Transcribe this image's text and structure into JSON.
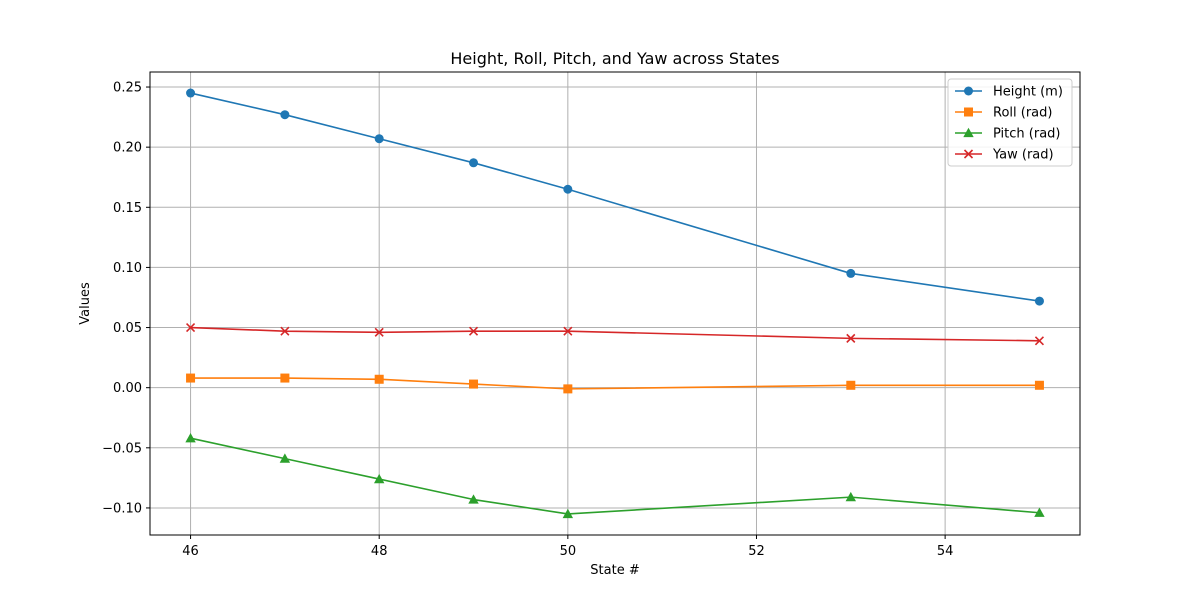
{
  "chart_data": {
    "type": "line",
    "title": "Height, Roll, Pitch, and Yaw across States",
    "xlabel": "State #",
    "ylabel": "Values",
    "x": [
      46,
      47,
      48,
      49,
      50,
      53,
      55
    ],
    "xlim": [
      45.57,
      55.43
    ],
    "ylim": [
      -0.1225,
      0.2625
    ],
    "xticks": [
      46,
      48,
      50,
      52,
      54
    ],
    "xtick_labels": [
      "46",
      "48",
      "50",
      "52",
      "54"
    ],
    "yticks": [
      -0.1,
      -0.05,
      0.0,
      0.05,
      0.1,
      0.15,
      0.2,
      0.25
    ],
    "ytick_labels": [
      "−0.10",
      "−0.05",
      "0.00",
      "0.05",
      "0.10",
      "0.15",
      "0.20",
      "0.25"
    ],
    "grid": true,
    "legend_position": "top-right",
    "series": [
      {
        "name": "Height (m)",
        "color": "#1f77b4",
        "marker": "circle",
        "values": [
          0.245,
          0.227,
          0.207,
          0.187,
          0.165,
          0.095,
          0.072
        ]
      },
      {
        "name": "Roll (rad)",
        "color": "#ff7f0e",
        "marker": "square",
        "values": [
          0.008,
          0.008,
          0.007,
          0.003,
          -0.001,
          0.002,
          0.002
        ]
      },
      {
        "name": "Pitch (rad)",
        "color": "#2ca02c",
        "marker": "triangle",
        "values": [
          -0.042,
          -0.059,
          -0.076,
          -0.093,
          -0.105,
          -0.091,
          -0.104
        ]
      },
      {
        "name": "Yaw (rad)",
        "color": "#d62728",
        "marker": "x",
        "values": [
          0.05,
          0.047,
          0.046,
          0.047,
          0.047,
          0.041,
          0.039
        ]
      }
    ]
  }
}
